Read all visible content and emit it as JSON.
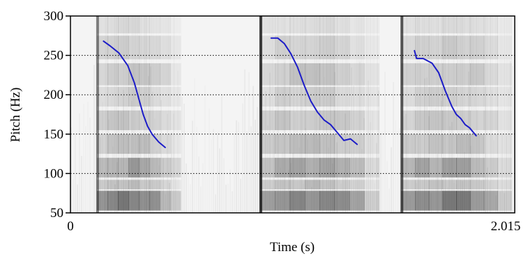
{
  "chart_data": {
    "type": "line",
    "background": "spectrogram",
    "xlabel": "Time (s)",
    "ylabel": "Pitch (Hz)",
    "xlim": [
      0,
      2.015
    ],
    "ylim": [
      50,
      300
    ],
    "x_tick_labels": [
      "0",
      "2.015"
    ],
    "y_ticks": [
      50,
      100,
      150,
      200,
      250,
      300
    ],
    "y_tick_labels": [
      "50",
      "100",
      "150",
      "200",
      "250",
      "300"
    ],
    "grid": "horizontal dotted at y ticks",
    "line_color": "#1c1cc8",
    "spectrogram_color": "#1a1a1a",
    "series": [
      {
        "x": [
          0.15,
          0.18,
          0.22,
          0.26,
          0.29,
          0.31,
          0.33,
          0.35,
          0.37,
          0.4,
          0.43
        ],
        "values": [
          268,
          262,
          253,
          237,
          215,
          195,
          175,
          160,
          150,
          140,
          133
        ]
      },
      {
        "x": [
          0.91,
          0.94,
          0.97,
          1.0,
          1.03,
          1.06,
          1.09,
          1.12,
          1.15,
          1.18,
          1.21,
          1.24,
          1.27,
          1.3
        ],
        "values": [
          272,
          272,
          265,
          252,
          235,
          212,
          192,
          178,
          168,
          162,
          152,
          142,
          144,
          137
        ]
      },
      {
        "x": [
          1.56,
          1.57,
          1.6,
          1.64,
          1.67,
          1.7,
          1.73,
          1.75,
          1.77,
          1.79,
          1.81,
          1.84
        ],
        "values": [
          256,
          246,
          246,
          240,
          228,
          205,
          185,
          175,
          170,
          162,
          158,
          148
        ]
      }
    ],
    "spectrogram_segments": [
      {
        "start": 0.12,
        "end": 0.5,
        "onset_strength": 0.5
      },
      {
        "start": 0.86,
        "end": 1.4,
        "onset_strength": 0.85
      },
      {
        "start": 1.5,
        "end": 2.0,
        "onset_strength": 0.7
      }
    ]
  }
}
